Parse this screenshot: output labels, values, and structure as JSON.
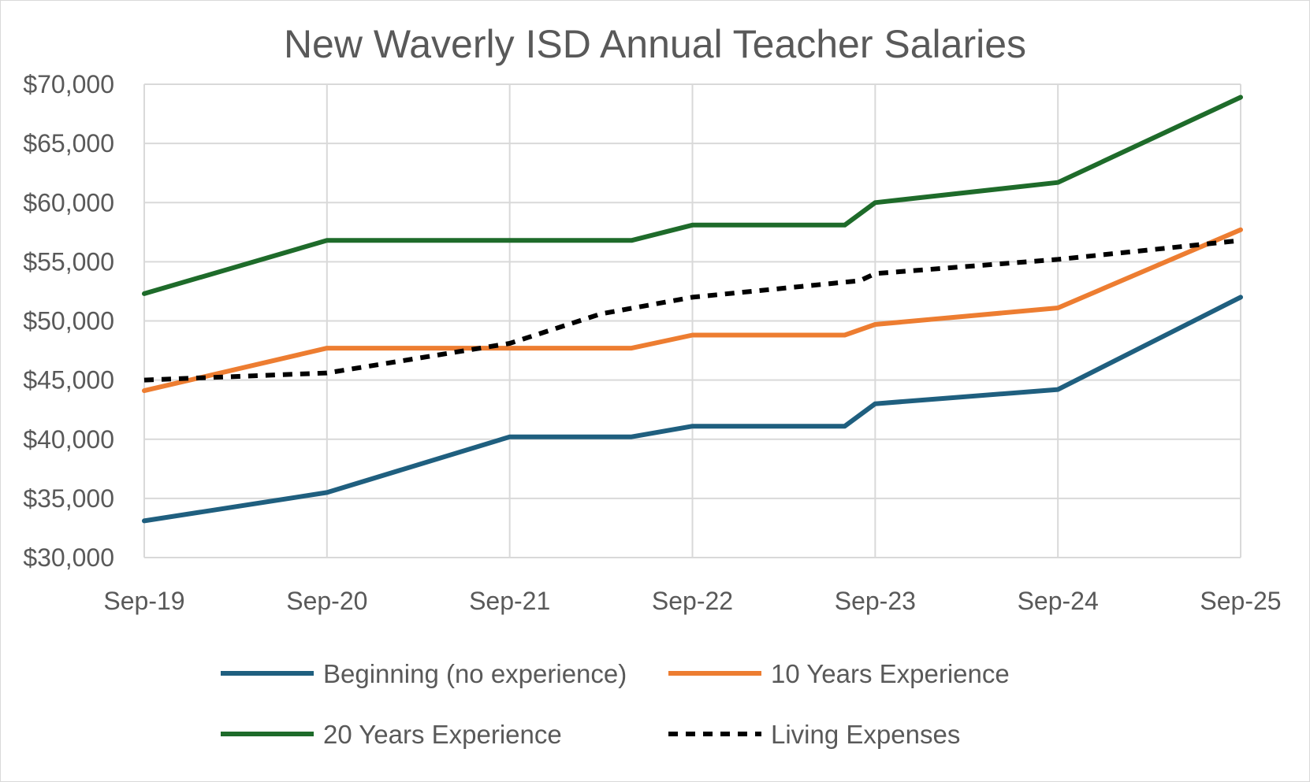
{
  "chart_data": {
    "type": "line",
    "title": "New Waverly ISD Annual Teacher Salaries",
    "xlabel": "",
    "ylabel": "",
    "x_tick_labels": [
      "Sep-19",
      "Sep-20",
      "Sep-21",
      "Sep-22",
      "Sep-23",
      "Sep-24",
      "Sep-25"
    ],
    "xlim": [
      "2019-09",
      "2025-09"
    ],
    "ylim": [
      30000,
      70000
    ],
    "y_tick_labels": [
      "$30,000",
      "$35,000",
      "$40,000",
      "$45,000",
      "$50,000",
      "$55,000",
      "$60,000",
      "$65,000",
      "$70,000"
    ],
    "y_ticks": [
      30000,
      35000,
      40000,
      45000,
      50000,
      55000,
      60000,
      65000,
      70000
    ],
    "grid": true,
    "legend_position": "bottom",
    "series": [
      {
        "name": "Beginning (no experience)",
        "color": "#1f5f7f",
        "dash": "solid",
        "points": [
          {
            "x": "2019-09",
            "y": 33100
          },
          {
            "x": "2020-09",
            "y": 35500
          },
          {
            "x": "2021-09",
            "y": 40200
          },
          {
            "x": "2022-05",
            "y": 40200
          },
          {
            "x": "2022-09",
            "y": 41100
          },
          {
            "x": "2023-07",
            "y": 41100
          },
          {
            "x": "2023-09",
            "y": 43000
          },
          {
            "x": "2024-09",
            "y": 44200
          },
          {
            "x": "2025-09",
            "y": 52000
          }
        ]
      },
      {
        "name": "10 Years Experience",
        "color": "#ed7d31",
        "dash": "solid",
        "points": [
          {
            "x": "2019-09",
            "y": 44100
          },
          {
            "x": "2020-09",
            "y": 47700
          },
          {
            "x": "2021-09",
            "y": 47700
          },
          {
            "x": "2022-05",
            "y": 47700
          },
          {
            "x": "2022-09",
            "y": 48800
          },
          {
            "x": "2023-07",
            "y": 48800
          },
          {
            "x": "2023-09",
            "y": 49700
          },
          {
            "x": "2024-09",
            "y": 51100
          },
          {
            "x": "2025-09",
            "y": 57700
          }
        ]
      },
      {
        "name": "20 Years Experience",
        "color": "#1e6b2a",
        "dash": "solid",
        "points": [
          {
            "x": "2019-09",
            "y": 52300
          },
          {
            "x": "2020-09",
            "y": 56800
          },
          {
            "x": "2021-09",
            "y": 56800
          },
          {
            "x": "2022-05",
            "y": 56800
          },
          {
            "x": "2022-09",
            "y": 58100
          },
          {
            "x": "2023-07",
            "y": 58100
          },
          {
            "x": "2023-09",
            "y": 60000
          },
          {
            "x": "2024-09",
            "y": 61700
          },
          {
            "x": "2025-09",
            "y": 68900
          }
        ]
      },
      {
        "name": "Living Expenses",
        "color": "#000000",
        "dash": "dashed",
        "points": [
          {
            "x": "2019-09",
            "y": 45000
          },
          {
            "x": "2020-09",
            "y": 45600
          },
          {
            "x": "2021-09",
            "y": 48100
          },
          {
            "x": "2022-03",
            "y": 50600
          },
          {
            "x": "2022-09",
            "y": 52000
          },
          {
            "x": "2023-08",
            "y": 53400
          },
          {
            "x": "2023-09",
            "y": 54000
          },
          {
            "x": "2024-09",
            "y": 55200
          },
          {
            "x": "2025-09",
            "y": 56800
          }
        ]
      }
    ]
  }
}
